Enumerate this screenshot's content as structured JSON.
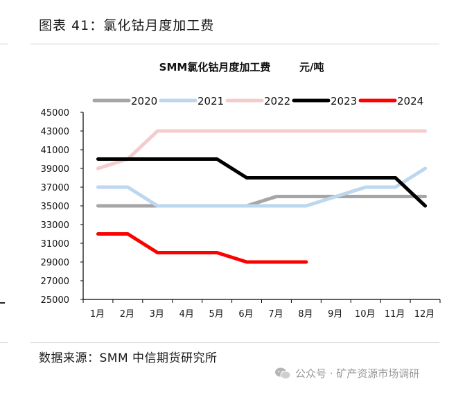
{
  "figure": {
    "title": "图表 41：氯化钴月度加工费",
    "source": "数据来源：SMM 中信期货研究所",
    "watermark": "公众号 · 矿产资源市场调研",
    "watermark_icon": "wechat-icon"
  },
  "chart_data": {
    "type": "line",
    "title": "SMM氯化钴月度加工费",
    "unit": "元/吨",
    "categories": [
      "1月",
      "2月",
      "3月",
      "4月",
      "5月",
      "6月",
      "7月",
      "8月",
      "9月",
      "10月",
      "11月",
      "12月"
    ],
    "ylim": [
      25000,
      45000
    ],
    "yticks": [
      25000,
      27000,
      29000,
      31000,
      33000,
      35000,
      37000,
      39000,
      41000,
      43000,
      45000
    ],
    "grid": false,
    "legend_position": "top",
    "series": [
      {
        "name": "2020",
        "color": "#a6a6a6",
        "values": [
          35000,
          35000,
          35000,
          35000,
          35000,
          35000,
          36000,
          36000,
          36000,
          36000,
          36000,
          36000
        ]
      },
      {
        "name": "2021",
        "color": "#bdd7ee",
        "values": [
          37000,
          37000,
          35000,
          35000,
          35000,
          35000,
          35000,
          35000,
          36000,
          37000,
          37000,
          39000
        ]
      },
      {
        "name": "2022",
        "color": "#f4cccc",
        "values": [
          39000,
          40000,
          43000,
          43000,
          43000,
          43000,
          43000,
          43000,
          43000,
          43000,
          43000,
          43000
        ]
      },
      {
        "name": "2023",
        "color": "#000000",
        "values": [
          40000,
          40000,
          40000,
          40000,
          40000,
          38000,
          38000,
          38000,
          38000,
          38000,
          38000,
          35000
        ]
      },
      {
        "name": "2024",
        "color": "#ff0000",
        "values": [
          32000,
          32000,
          30000,
          30000,
          30000,
          29000,
          29000,
          29000,
          null,
          null,
          null,
          null
        ]
      }
    ]
  }
}
